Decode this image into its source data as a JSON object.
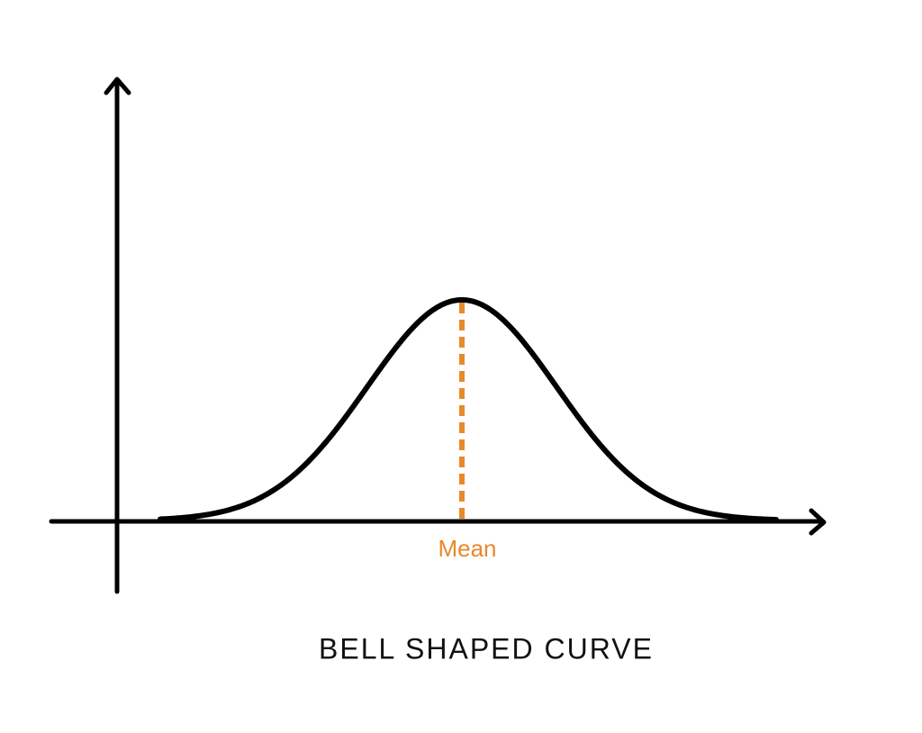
{
  "diagram": {
    "title": "BELL SHAPED CURVE",
    "mean_label": "Mean"
  }
}
